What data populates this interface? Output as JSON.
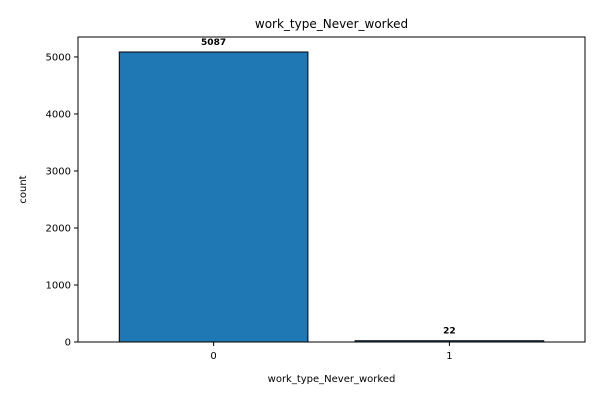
{
  "chart_data": {
    "type": "bar",
    "title": "work_type_Never_worked",
    "xlabel": "work_type_Never_worked",
    "ylabel": "count",
    "categories": [
      "0",
      "1"
    ],
    "values": [
      5087,
      22
    ],
    "data_labels": [
      "5087",
      "22"
    ],
    "ylim": [
      0,
      5350
    ],
    "yticks": [
      0,
      1000,
      2000,
      3000,
      4000,
      5000
    ],
    "ytick_labels": [
      "0",
      "1000",
      "2000",
      "3000",
      "4000",
      "5000"
    ],
    "bar_color": "#1f77b4",
    "edge_color": "#000000",
    "grid": false,
    "legend": "none"
  }
}
